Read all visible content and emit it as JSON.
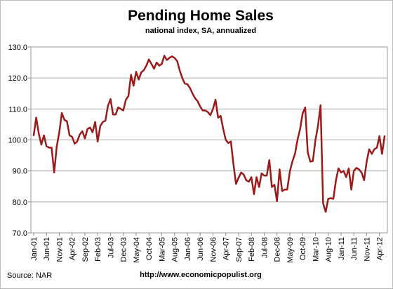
{
  "chart_data": {
    "type": "line",
    "title": "Pending Home Sales",
    "subtitle": "national index, SA, annualized",
    "source": "Source:  NAR",
    "url": "http://www.economicpopulist.org",
    "ylim": [
      70,
      130
    ],
    "yticks": [
      "70.0",
      "80.0",
      "90.0",
      "100.0",
      "110.0",
      "120.0",
      "130.0"
    ],
    "xlabels": [
      "Jan-01",
      "Jun-01",
      "Nov-01",
      "Apr-02",
      "Sep-02",
      "Feb-03",
      "Jul-03",
      "Dec-03",
      "May-04",
      "Oct-04",
      "Mar-05",
      "Aug-05",
      "Jan-06",
      "Jun-06",
      "Nov-06",
      "Apr-07",
      "Sep-07",
      "Feb-08",
      "Jul-08",
      "Dec-08",
      "May-09",
      "Oct-09",
      "Mar-10",
      "Aug-10",
      "Jan-11",
      "Jun-11",
      "Nov-11",
      "Apr-12"
    ],
    "grid": true,
    "line_color": "#9b1b1b",
    "series": [
      {
        "values": [
          101.5,
          107.2,
          102.0,
          98.5,
          101.5,
          98.0,
          97.5,
          97.5,
          89.5,
          97.8,
          102.5,
          108.7,
          106.5,
          106.0,
          101.5,
          101.0,
          98.8,
          99.5,
          101.8,
          102.8,
          100.5,
          103.5,
          104.0,
          102.5,
          105.8,
          99.5,
          104.5,
          105.8,
          106.2,
          111.0,
          113.2,
          108.2,
          108.2,
          110.5,
          110.0,
          109.5,
          113.0,
          114.2,
          121.0,
          117.5,
          122.0,
          119.5,
          121.8,
          122.5,
          124.0,
          126.0,
          124.5,
          123.0,
          125.0,
          124.0,
          124.5,
          127.2,
          125.8,
          126.5,
          127.0,
          126.5,
          125.5,
          122.5,
          120.0,
          118.2,
          118.0,
          116.8,
          115.0,
          113.5,
          112.5,
          110.8,
          109.5,
          109.5,
          109.0,
          108.0,
          110.0,
          113.0,
          107.2,
          107.8,
          103.5,
          100.0,
          99.0,
          99.5,
          92.0,
          85.8,
          87.8,
          89.5,
          88.8,
          87.0,
          86.5,
          88.0,
          82.5,
          88.0,
          84.8,
          89.2,
          88.5,
          88.5,
          93.5,
          84.8,
          85.5,
          80.2,
          90.5,
          83.5,
          84.0,
          84.0,
          89.8,
          93.0,
          95.5,
          100.0,
          103.5,
          108.5,
          110.5,
          96.0,
          93.0,
          93.2,
          100.0,
          104.5,
          111.2,
          79.5,
          76.8,
          81.0,
          81.2,
          81.0,
          87.0,
          90.8,
          89.5,
          90.0,
          88.0,
          90.8,
          84.0,
          90.0,
          91.0,
          90.5,
          89.5,
          87.0,
          93.0,
          97.0,
          95.5,
          97.0,
          97.5,
          101.2,
          95.5,
          101.2
        ]
      }
    ]
  }
}
